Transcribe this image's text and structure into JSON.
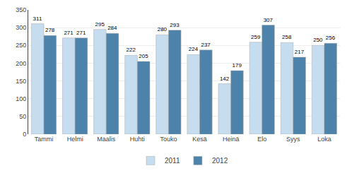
{
  "chart_data": {
    "type": "bar",
    "categories": [
      "Tammi",
      "Helmi",
      "Maalis",
      "Huhti",
      "Touko",
      "Kesä",
      "Heinä",
      "Elo",
      "Syys",
      "Loka"
    ],
    "series": [
      {
        "name": "2011",
        "color": "#c5ddef",
        "values": [
          311,
          271,
          295,
          222,
          280,
          224,
          142,
          259,
          258,
          250
        ]
      },
      {
        "name": "2012",
        "color": "#4d82aa",
        "values": [
          278,
          271,
          284,
          205,
          293,
          237,
          179,
          307,
          217,
          256
        ]
      }
    ],
    "ylim": [
      0,
      350
    ],
    "yticks": [
      0,
      50,
      100,
      150,
      200,
      250,
      300,
      350
    ],
    "grid": true,
    "data_labels": true,
    "legend": "bottom"
  }
}
